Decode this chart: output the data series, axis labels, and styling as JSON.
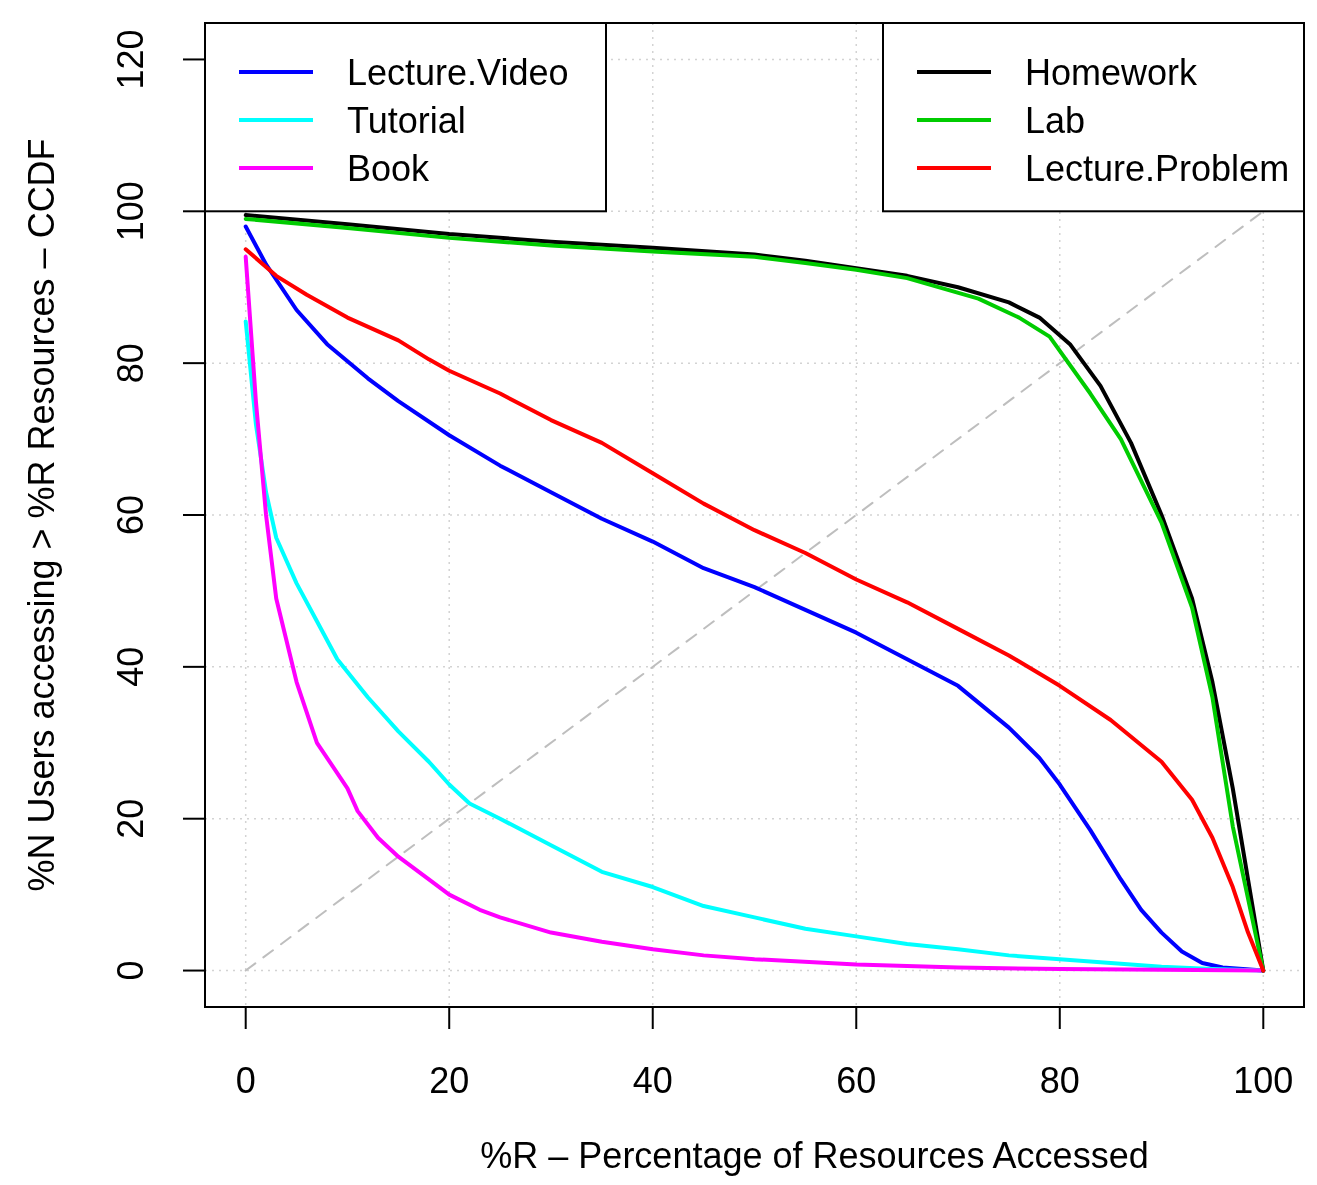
{
  "chart_data": {
    "type": "line",
    "xlabel": "%R – Percentage of Resources Accessed",
    "ylabel": "%N Users accessing > %R Resources – CCDF",
    "xlim": [
      -4,
      104
    ],
    "ylim": [
      -4.8,
      124.8
    ],
    "xticks": [
      0,
      20,
      40,
      60,
      80,
      100
    ],
    "yticks": [
      0,
      20,
      40,
      60,
      80,
      100,
      120
    ],
    "grid": true,
    "legend": "top",
    "line_style": "solid",
    "series": [
      {
        "name": "Lecture.Video",
        "color": "#0000ff",
        "x": [
          0,
          2,
          5,
          8,
          12,
          15,
          20,
          25,
          30,
          35,
          40,
          45,
          50,
          55,
          60,
          65,
          70,
          75,
          78,
          80,
          83,
          86,
          88,
          90,
          92,
          94,
          96,
          100
        ],
        "values": [
          98,
          93,
          87,
          82.5,
          78,
          75,
          70.5,
          66.5,
          63,
          59.5,
          56.5,
          53,
          50.5,
          47.5,
          44.5,
          41,
          37.5,
          32,
          28,
          24.5,
          18.5,
          12,
          8,
          5,
          2.5,
          1,
          0.4,
          0
        ]
      },
      {
        "name": "Tutorial",
        "color": "#00ffff",
        "x": [
          0,
          1,
          2,
          3,
          5,
          7,
          9,
          12,
          15,
          18,
          20,
          22,
          25,
          30,
          35,
          40,
          45,
          50,
          55,
          60,
          65,
          70,
          75,
          80,
          85,
          90,
          95,
          100
        ],
        "values": [
          85.5,
          72,
          63,
          57,
          51,
          46,
          41,
          36,
          31.5,
          27.5,
          24.5,
          22,
          20,
          16.5,
          13,
          11,
          8.5,
          7,
          5.5,
          4.5,
          3.5,
          2.8,
          2,
          1.5,
          1,
          0.5,
          0.2,
          0
        ]
      },
      {
        "name": "Book",
        "color": "#ff00ff",
        "x": [
          0,
          1,
          2,
          3,
          5,
          7,
          10,
          11,
          13,
          15,
          18,
          20,
          23,
          25,
          30,
          35,
          40,
          45,
          50,
          60,
          70,
          80,
          90,
          100
        ],
        "values": [
          94,
          75,
          60,
          49,
          38,
          30,
          24,
          21,
          17.5,
          15,
          12,
          10,
          8,
          7,
          5,
          3.8,
          2.8,
          2,
          1.5,
          0.8,
          0.4,
          0.2,
          0.1,
          0
        ]
      },
      {
        "name": "Homework",
        "color": "#000000",
        "x": [
          0,
          10,
          20,
          30,
          40,
          50,
          55,
          60,
          65,
          70,
          75,
          78,
          81,
          84,
          87,
          90,
          93,
          95,
          97,
          100
        ],
        "values": [
          99.5,
          98.3,
          97,
          96,
          95.2,
          94.3,
          93.5,
          92.5,
          91.5,
          90,
          88,
          86,
          82.5,
          77,
          69.5,
          60,
          49,
          38,
          24,
          0
        ]
      },
      {
        "name": "Lab",
        "color": "#00cc00",
        "x": [
          0,
          10,
          20,
          30,
          40,
          50,
          55,
          60,
          65,
          72,
          76,
          79,
          83,
          86,
          90,
          93,
          95,
          97,
          100
        ],
        "values": [
          99,
          97.8,
          96.5,
          95.5,
          94.7,
          94,
          93.2,
          92.3,
          91.2,
          88.5,
          86,
          83.5,
          76,
          70,
          59,
          47.8,
          36,
          19,
          0
        ]
      },
      {
        "name": "Lecture.Problem",
        "color": "#ff0000",
        "x": [
          0,
          3,
          6,
          10,
          15,
          18,
          20,
          25,
          30,
          35,
          40,
          45,
          50,
          55,
          60,
          65,
          70,
          75,
          80,
          85,
          90,
          93,
          95,
          97,
          98.5,
          100
        ],
        "values": [
          95,
          91.5,
          89,
          86,
          83,
          80.5,
          79,
          76,
          72.5,
          69.5,
          65.5,
          61.5,
          58,
          55,
          51.5,
          48.5,
          45,
          41.5,
          37.5,
          33,
          27.5,
          22.5,
          17.5,
          11,
          5,
          0
        ]
      },
      {
        "color": "#bebebe",
        "line_style": "dashed",
        "x": [
          0,
          100
        ],
        "values": [
          0,
          100
        ]
      }
    ]
  }
}
